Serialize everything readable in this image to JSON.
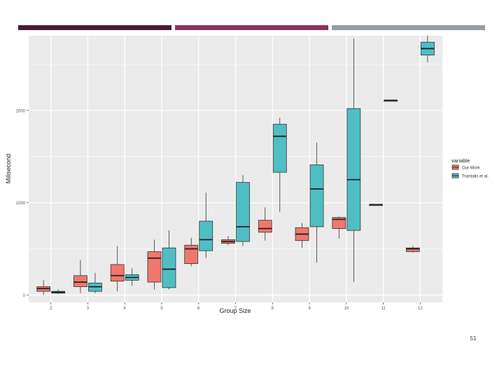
{
  "theme": {
    "stripe_colors": [
      "#4a1838",
      "#8c3062",
      "#949ca4"
    ],
    "panel_bg": "#ebebeb",
    "grid_color": "#ffffff",
    "series_colors": [
      "#f0776c",
      "#4fbec4"
    ]
  },
  "slide": {
    "number": "51"
  },
  "chart_data": {
    "type": "boxplot",
    "title": "",
    "xlabel": "Group Size",
    "ylabel": "Milisecond",
    "categories": [
      "2",
      "3",
      "4",
      "5",
      "6",
      "7",
      "8",
      "9",
      "10",
      "11",
      "12"
    ],
    "ylim": [
      -80,
      2810
    ],
    "yticks": [
      0,
      1000,
      2000
    ],
    "ytick_labels": [
      "0",
      "1000",
      "2000"
    ],
    "grid": true,
    "legend": {
      "title": "variable",
      "position": "right"
    },
    "series": [
      {
        "name": "Our Work",
        "boxes": [
          {
            "category": "2",
            "min": 0,
            "q1": 40,
            "median": 70,
            "q3": 90,
            "max": 160
          },
          {
            "category": "3",
            "min": 20,
            "q1": 90,
            "median": 140,
            "q3": 210,
            "max": 380
          },
          {
            "category": "4",
            "min": 40,
            "q1": 150,
            "median": 210,
            "q3": 330,
            "max": 530
          },
          {
            "category": "5",
            "min": 60,
            "q1": 140,
            "median": 400,
            "q3": 470,
            "max": 600
          },
          {
            "category": "6",
            "min": 310,
            "q1": 340,
            "median": 500,
            "q3": 540,
            "max": 620
          },
          {
            "category": "7",
            "min": 540,
            "q1": 560,
            "median": 580,
            "q3": 600,
            "max": 640
          },
          {
            "category": "8",
            "min": 590,
            "q1": 680,
            "median": 720,
            "q3": 810,
            "max": 950
          },
          {
            "category": "9",
            "min": 510,
            "q1": 590,
            "median": 660,
            "q3": 730,
            "max": 780
          },
          {
            "category": "10",
            "min": 610,
            "q1": 720,
            "median": 820,
            "q3": 840,
            "max": 850
          },
          {
            "category": "11",
            "min": 980,
            "q1": 980,
            "median": 980,
            "q3": 980,
            "max": 980
          },
          {
            "category": "12",
            "min": 460,
            "q1": 470,
            "median": 500,
            "q3": 510,
            "max": 530
          }
        ]
      },
      {
        "name": "Tsantalis et al.",
        "boxes": [
          {
            "category": "2",
            "min": 10,
            "q1": 20,
            "median": 30,
            "q3": 40,
            "max": 60
          },
          {
            "category": "3",
            "min": 20,
            "q1": 40,
            "median": 90,
            "q3": 130,
            "max": 240
          },
          {
            "category": "4",
            "min": 100,
            "q1": 160,
            "median": 190,
            "q3": 220,
            "max": 290
          },
          {
            "category": "5",
            "min": 60,
            "q1": 80,
            "median": 280,
            "q3": 510,
            "max": 700
          },
          {
            "category": "6",
            "min": 400,
            "q1": 480,
            "median": 600,
            "q3": 800,
            "max": 1110
          },
          {
            "category": "7",
            "min": 530,
            "q1": 580,
            "median": 740,
            "q3": 1220,
            "max": 1300
          },
          {
            "category": "8",
            "min": 900,
            "q1": 1330,
            "median": 1720,
            "q3": 1850,
            "max": 1920
          },
          {
            "category": "9",
            "min": 350,
            "q1": 740,
            "median": 1150,
            "q3": 1410,
            "max": 1650
          },
          {
            "category": "10",
            "min": 140,
            "q1": 700,
            "median": 1250,
            "q3": 2020,
            "max": 2780
          },
          {
            "category": "11",
            "min": 2110,
            "q1": 2110,
            "median": 2110,
            "q3": 2110,
            "max": 2110
          },
          {
            "category": "12",
            "min": 2520,
            "q1": 2600,
            "median": 2670,
            "q3": 2740,
            "max": 2810
          }
        ]
      }
    ]
  }
}
